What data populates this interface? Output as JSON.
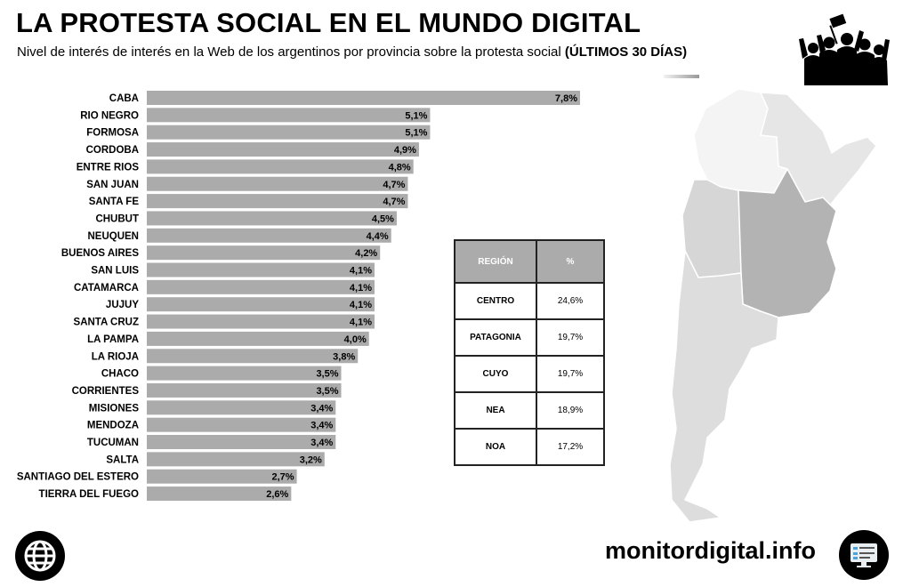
{
  "header": {
    "title": "LA PROTESTA SOCIAL EN EL MUNDO DIGITAL",
    "subtitle": "Nivel de interés de interés en la Web de los argentinos por provincia sobre la protesta social",
    "subtitle_emphasis": "(ÚLTIMOS 30 DÍAS)"
  },
  "chart_data": {
    "type": "bar",
    "orientation": "horizontal",
    "categories": [
      "CABA",
      "RIO NEGRO",
      "FORMOSA",
      "CORDOBA",
      "ENTRE RIOS",
      "SAN JUAN",
      "SANTA FE",
      "CHUBUT",
      "NEUQUEN",
      "BUENOS AIRES",
      "SAN LUIS",
      "CATAMARCA",
      "JUJUY",
      "SANTA CRUZ",
      "LA PAMPA",
      "LA RIOJA",
      "CHACO",
      "CORRIENTES",
      "MISIONES",
      "MENDOZA",
      "TUCUMAN",
      "SALTA",
      "SANTIAGO DEL ESTERO",
      "TIERRA DEL FUEGO"
    ],
    "values": [
      7.8,
      5.1,
      5.1,
      4.9,
      4.8,
      4.7,
      4.7,
      4.5,
      4.4,
      4.2,
      4.1,
      4.1,
      4.1,
      4.1,
      4.0,
      3.8,
      3.5,
      3.5,
      3.4,
      3.4,
      3.4,
      3.2,
      2.7,
      2.6
    ],
    "value_labels": [
      "7,8%",
      "5,1%",
      "5,1%",
      "4,9%",
      "4,8%",
      "4,7%",
      "4,7%",
      "4,5%",
      "4,4%",
      "4,2%",
      "4,1%",
      "4,1%",
      "4,1%",
      "4,1%",
      "4,0%",
      "3,8%",
      "3,5%",
      "3,5%",
      "3,4%",
      "3,4%",
      "3,4%",
      "3,2%",
      "2,7%",
      "2,6%"
    ],
    "bar_color": "#ababab",
    "xlim": [
      0,
      7.8
    ]
  },
  "region_table": {
    "headers": [
      "REGIÓN",
      "%"
    ],
    "rows": [
      {
        "region": "CENTRO",
        "value": "24,6%"
      },
      {
        "region": "PATAGONIA",
        "value": "19,7%"
      },
      {
        "region": "CUYO",
        "value": "19,7%"
      },
      {
        "region": "NEA",
        "value": "18,9%"
      },
      {
        "region": "NOA",
        "value": "17,2%"
      }
    ]
  },
  "map": {
    "colors": {
      "centro": "#b3b3b3",
      "nea": "#e6e6e6",
      "noa": "#f4f4f4",
      "cuyo": "#d6d6d6",
      "patagonia": "#dddddd"
    }
  },
  "footer": {
    "brand": "monitordigital.info",
    "left_icon": "globe-icon",
    "right_icon": "monitor-icon"
  }
}
